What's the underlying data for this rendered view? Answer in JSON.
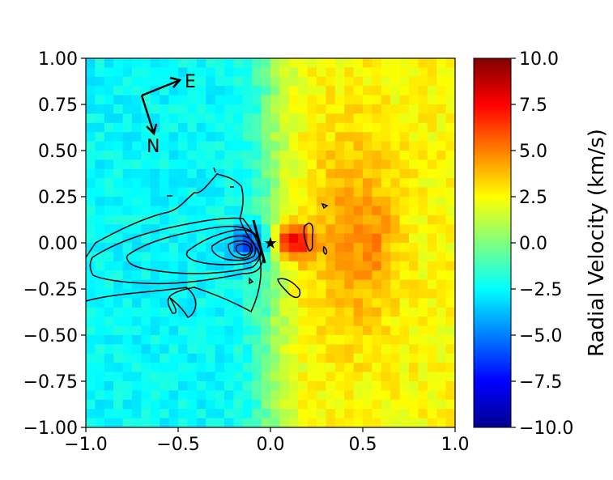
{
  "chart_data": {
    "type": "heatmap",
    "title": "",
    "xlabel": "",
    "ylabel": "",
    "xlim": [
      -1.0,
      1.0
    ],
    "ylim": [
      -1.0,
      1.0
    ],
    "x_ticks": [
      "−1.0",
      "−0.5",
      "0.0",
      "0.5",
      "1.0"
    ],
    "y_ticks": [
      "1.00",
      "0.75",
      "0.50",
      "0.25",
      "0.00",
      "−0.25",
      "−0.50",
      "−0.75",
      "−1.00"
    ],
    "colorbar": {
      "label": "Radial Velocity (km/s)",
      "range": [
        -10.0,
        10.0
      ],
      "ticks": [
        "10.0",
        "7.5",
        "5.0",
        "2.5",
        "0.0",
        "−2.5",
        "−5.0",
        "−7.5",
        "−10.0"
      ],
      "colormap": "jet"
    },
    "compass": {
      "east_label": "E",
      "north_label": "N"
    },
    "marker": {
      "x": 0.0,
      "y": 0.0,
      "symbol": "star"
    },
    "grid": false,
    "features": [
      {
        "name": "blueshifted lobe",
        "x": -0.13,
        "y": -0.01,
        "velocity": -8.5,
        "sx": 0.1,
        "sy": 0.06
      },
      {
        "name": "blueshifted extension",
        "x": -0.45,
        "y": -0.05,
        "velocity": -2.5,
        "sx": 0.25,
        "sy": 0.16
      },
      {
        "name": "redshifted peak",
        "x": 0.13,
        "y": 0.0,
        "velocity": 8.0,
        "sx": 0.08,
        "sy": 0.07
      },
      {
        "name": "redshifted outer arc",
        "x": 0.55,
        "y": 0.0,
        "velocity": 5.5,
        "sx": 0.06,
        "sy": 0.15
      },
      {
        "name": "redshifted extension",
        "x": 0.45,
        "y": 0.05,
        "velocity": 4.5,
        "sx": 0.16,
        "sy": 0.38
      }
    ],
    "background_velocity": {
      "east_side": -2.5,
      "west_side": 2.5
    }
  }
}
